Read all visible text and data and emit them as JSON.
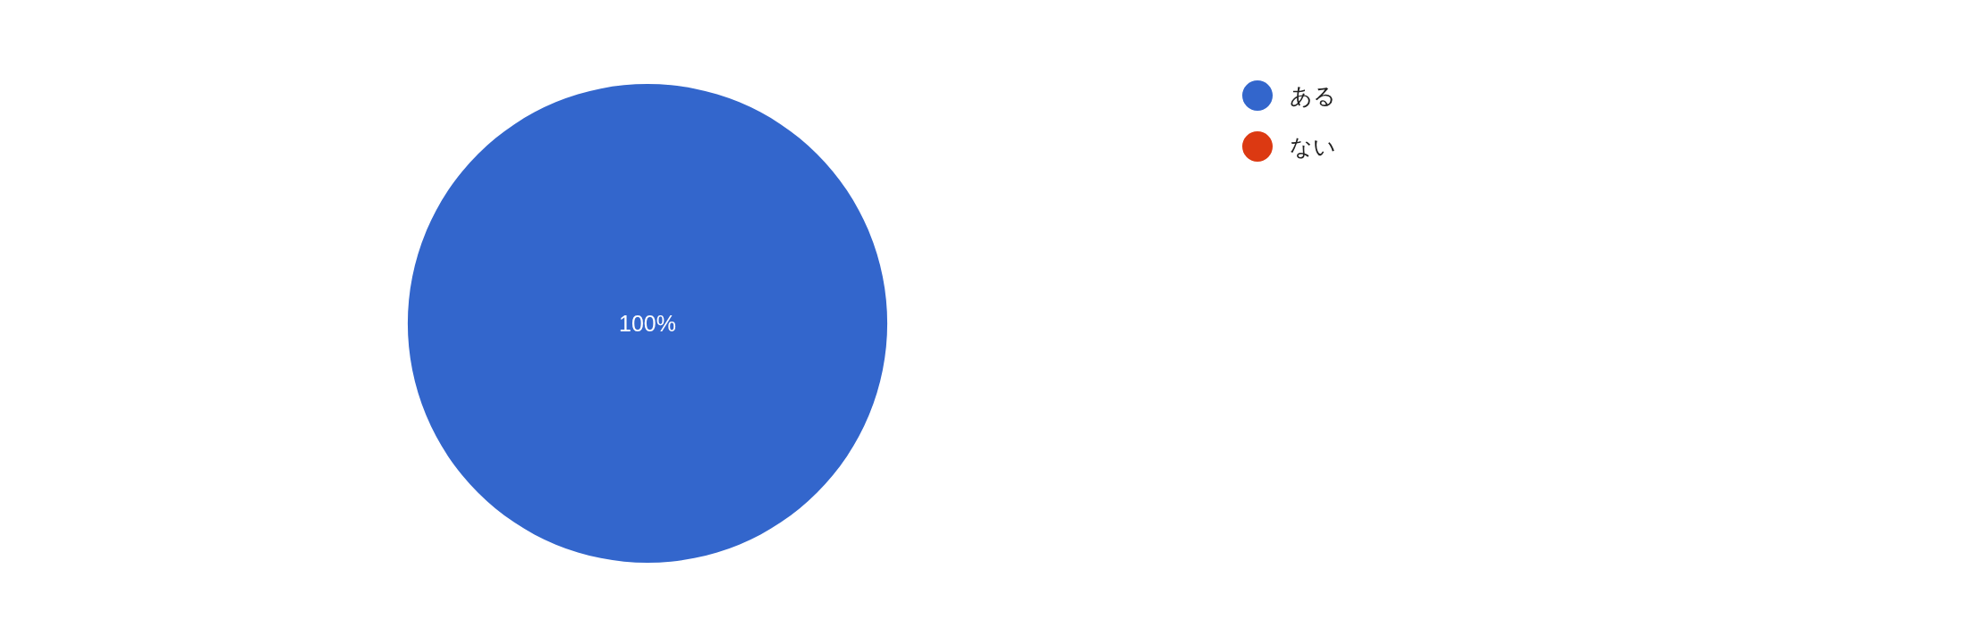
{
  "chart_data": {
    "type": "pie",
    "categories": [
      "ある",
      "ない"
    ],
    "values": [
      100,
      0
    ],
    "colors": [
      "#3366cc",
      "#dc3912"
    ],
    "value_labels": [
      "100%",
      null
    ],
    "legend": "top right"
  }
}
